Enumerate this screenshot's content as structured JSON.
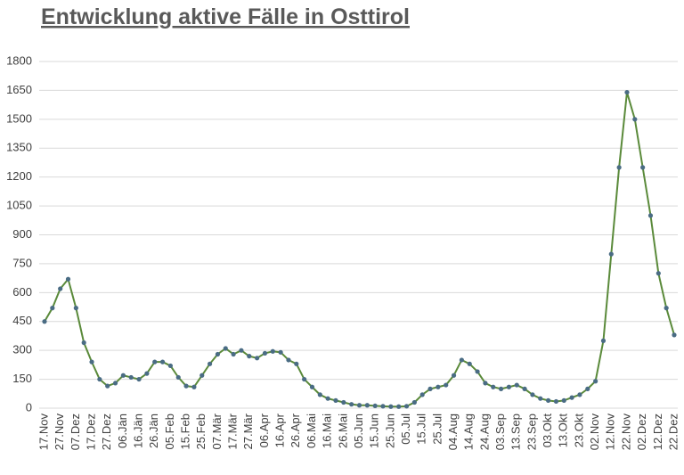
{
  "chart_data": {
    "type": "line",
    "title": "Entwicklung aktive Fälle in Osttirol",
    "categories": [
      "17.Nov",
      null,
      "27.Nov",
      null,
      "07.Dez",
      null,
      "17.Dez",
      null,
      "27.Dez",
      null,
      "06.Jän",
      null,
      "16.Jän",
      null,
      "26.Jän",
      null,
      "05.Feb",
      null,
      "15.Feb",
      null,
      "25.Feb",
      null,
      "07.Mär",
      null,
      "17.Mär",
      null,
      "27.Mär",
      null,
      "06.Apr",
      null,
      "16.Apr",
      null,
      "26.Apr",
      null,
      "06.Mai",
      null,
      "16.Mai",
      null,
      "26.Mai",
      null,
      "05.Jun",
      null,
      "15.Jun",
      null,
      "25.Jun",
      null,
      "05.Jul",
      null,
      "15.Jul",
      null,
      "25.Jul",
      null,
      "04.Aug",
      null,
      "14.Aug",
      null,
      "24.Aug",
      null,
      "03.Sep",
      null,
      "13.Sep",
      null,
      "23.Sep",
      null,
      "03.Okt",
      null,
      "13.Okt",
      null,
      "23.Okt",
      null,
      "02.Nov",
      null,
      "12.Nov",
      null,
      "22.Nov",
      null,
      "02.Dez",
      null,
      "12.Dez",
      null,
      "22.Dez"
    ],
    "values": [
      450,
      520,
      620,
      670,
      520,
      340,
      240,
      150,
      115,
      130,
      170,
      160,
      150,
      180,
      240,
      240,
      220,
      160,
      115,
      110,
      170,
      230,
      280,
      310,
      280,
      300,
      270,
      260,
      285,
      295,
      290,
      250,
      230,
      150,
      110,
      70,
      50,
      40,
      30,
      20,
      15,
      15,
      12,
      10,
      8,
      8,
      10,
      30,
      70,
      100,
      110,
      120,
      170,
      250,
      230,
      190,
      130,
      110,
      100,
      110,
      120,
      100,
      70,
      50,
      40,
      35,
      40,
      55,
      70,
      100,
      140,
      350,
      800,
      1250,
      1640,
      1500,
      1250,
      1000,
      700,
      520,
      380
    ],
    "color": "#5a8a3a",
    "marker_color": "#4a6c84",
    "ylim": [
      0,
      1800
    ],
    "yticks": [
      0,
      150,
      300,
      450,
      600,
      750,
      900,
      1050,
      1200,
      1350,
      1500,
      1650,
      1800
    ],
    "grid": true
  }
}
